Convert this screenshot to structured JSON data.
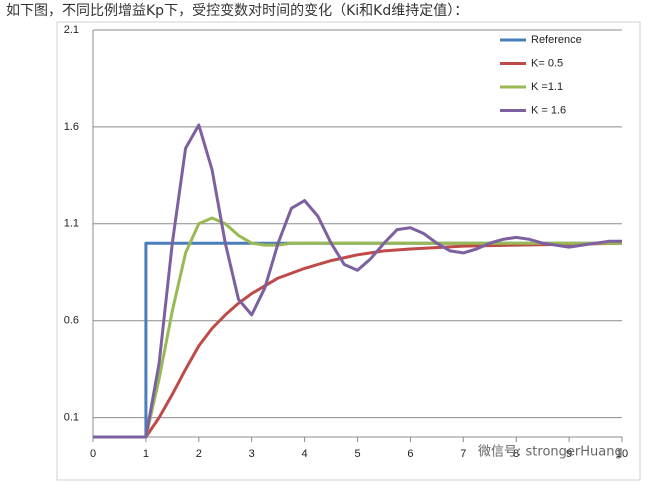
{
  "caption": "如下图，不同比例增益Kp下，受控变数对时间的变化（Ki和Kd维持定值）：",
  "watermark": "微信号: strongerHuang",
  "chart_data": {
    "type": "line",
    "xlim": [
      0,
      10
    ],
    "xticks": [
      0,
      1,
      2,
      3,
      4,
      5,
      6,
      7,
      8,
      9,
      10
    ],
    "ylim": [
      0,
      2.1
    ],
    "yticks": [
      0.1,
      0.6,
      1.1,
      1.6,
      2.1
    ],
    "grid": true,
    "series": [
      {
        "name": "Reference",
        "color": "#4a7ebb",
        "x": [
          0,
          1,
          1,
          10
        ],
        "values": [
          0,
          0,
          1,
          1
        ]
      },
      {
        "name": "K= 0.5",
        "color": "#be4b48",
        "x": [
          0,
          1,
          1.25,
          1.5,
          1.75,
          2,
          2.25,
          2.5,
          2.75,
          3,
          3.5,
          4,
          4.5,
          5,
          5.5,
          6,
          7,
          8,
          9,
          10
        ],
        "values": [
          0,
          0,
          0.1,
          0.22,
          0.35,
          0.47,
          0.56,
          0.63,
          0.69,
          0.74,
          0.82,
          0.87,
          0.91,
          0.94,
          0.96,
          0.97,
          0.985,
          0.99,
          0.995,
          1.0
        ]
      },
      {
        "name": "K =1.1",
        "color": "#98b954",
        "x": [
          0,
          1,
          1.25,
          1.5,
          1.75,
          2,
          2.25,
          2.5,
          2.75,
          3,
          3.25,
          3.5,
          3.75,
          4,
          10
        ],
        "values": [
          0,
          0,
          0.3,
          0.65,
          0.95,
          1.1,
          1.13,
          1.1,
          1.04,
          1.0,
          0.99,
          0.99,
          1.0,
          1.0,
          1.0
        ]
      },
      {
        "name": "K = 1.6",
        "color": "#7d60a0",
        "x": [
          0,
          1,
          1.25,
          1.5,
          1.75,
          2,
          2.25,
          2.5,
          2.75,
          3,
          3.25,
          3.5,
          3.75,
          4,
          4.25,
          4.5,
          4.75,
          5,
          5.25,
          5.5,
          5.75,
          6,
          6.25,
          6.5,
          6.75,
          7,
          7.25,
          7.5,
          7.75,
          8,
          8.25,
          8.5,
          8.75,
          9,
          9.25,
          9.5,
          9.75,
          10
        ],
        "values": [
          0,
          0,
          0.38,
          1.0,
          1.49,
          1.61,
          1.38,
          1.0,
          0.71,
          0.63,
          0.77,
          1.0,
          1.18,
          1.22,
          1.14,
          1.0,
          0.89,
          0.86,
          0.92,
          1.0,
          1.07,
          1.08,
          1.05,
          1.0,
          0.96,
          0.95,
          0.97,
          1.0,
          1.02,
          1.03,
          1.02,
          1.0,
          0.99,
          0.98,
          0.99,
          1.0,
          1.01,
          1.01
        ]
      }
    ]
  }
}
